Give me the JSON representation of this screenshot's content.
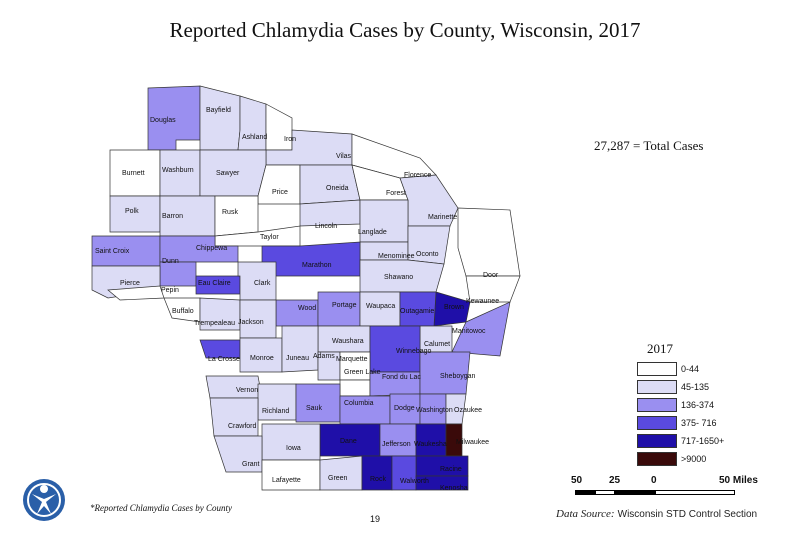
{
  "title": "Reported Chlamydia Cases by County, Wisconsin, 2017",
  "total_cases": "27,287 = Total Cases",
  "legend": {
    "title": "2017",
    "items": [
      {
        "label": "0-44",
        "color": "#ffffff"
      },
      {
        "label": "45-135",
        "color": "#dcdcf5"
      },
      {
        "label": "136-374",
        "color": "#9a8ff0"
      },
      {
        "label": "375- 716",
        "color": "#5a4ae0"
      },
      {
        "label": "717-1650+",
        "color": "#1f0fa8"
      },
      {
        "label": ">9000",
        "color": "#3a0a0a"
      }
    ]
  },
  "scale_bar": {
    "ticks": [
      "50",
      "25",
      "0",
      "50 Miles"
    ]
  },
  "footnote": "*Reported Chlamydia Cases by County",
  "page_number": "19",
  "data_source_label": "Data Source:",
  "data_source_value": "Wisconsin STD Control Section",
  "logo_icon": "person-figure-icon",
  "counties": [
    {
      "name": "Douglas",
      "cat": 2
    },
    {
      "name": "Bayfield",
      "cat": 1
    },
    {
      "name": "Ashland",
      "cat": 1
    },
    {
      "name": "Iron",
      "cat": 0
    },
    {
      "name": "Vilas",
      "cat": 1
    },
    {
      "name": "Burnett",
      "cat": 0
    },
    {
      "name": "Washburn",
      "cat": 1
    },
    {
      "name": "Sawyer",
      "cat": 1
    },
    {
      "name": "Florence",
      "cat": 0
    },
    {
      "name": "Price",
      "cat": 0
    },
    {
      "name": "Oneida",
      "cat": 1
    },
    {
      "name": "Forest",
      "cat": 0
    },
    {
      "name": "Polk",
      "cat": 1
    },
    {
      "name": "Barron",
      "cat": 1
    },
    {
      "name": "Rusk",
      "cat": 0
    },
    {
      "name": "Marinette",
      "cat": 1
    },
    {
      "name": "Lincoln",
      "cat": 1
    },
    {
      "name": "Taylor",
      "cat": 0
    },
    {
      "name": "Langlade",
      "cat": 1
    },
    {
      "name": "Saint Croix",
      "cat": 2
    },
    {
      "name": "Chippewa",
      "cat": 2
    },
    {
      "name": "Menominee",
      "cat": 1
    },
    {
      "name": "Oconto",
      "cat": 1
    },
    {
      "name": "Dunn",
      "cat": 2
    },
    {
      "name": "Marathon",
      "cat": 3
    },
    {
      "name": "Door",
      "cat": 0
    },
    {
      "name": "Pierce",
      "cat": 1
    },
    {
      "name": "Eau Claire",
      "cat": 3
    },
    {
      "name": "Clark",
      "cat": 1
    },
    {
      "name": "Shawano",
      "cat": 1
    },
    {
      "name": "Pepin",
      "cat": 0
    },
    {
      "name": "Kewaunee",
      "cat": 0
    },
    {
      "name": "Wood",
      "cat": 2
    },
    {
      "name": "Portage",
      "cat": 2
    },
    {
      "name": "Waupaca",
      "cat": 1
    },
    {
      "name": "Brown",
      "cat": 4
    },
    {
      "name": "Outagamie",
      "cat": 3
    },
    {
      "name": "Buffalo",
      "cat": 0
    },
    {
      "name": "Trempealeau",
      "cat": 1
    },
    {
      "name": "Jackson",
      "cat": 1
    },
    {
      "name": "Manitowoc",
      "cat": 2
    },
    {
      "name": "Waushara",
      "cat": 1
    },
    {
      "name": "Calumet",
      "cat": 1
    },
    {
      "name": "Winnebago",
      "cat": 3
    },
    {
      "name": "La Crosse",
      "cat": 3
    },
    {
      "name": "Monroe",
      "cat": 1
    },
    {
      "name": "Juneau",
      "cat": 1
    },
    {
      "name": "Adams",
      "cat": 1
    },
    {
      "name": "Marquette",
      "cat": 0
    },
    {
      "name": "Green Lake",
      "cat": 0
    },
    {
      "name": "Fond du Lac",
      "cat": 2
    },
    {
      "name": "Sheboygan",
      "cat": 2
    },
    {
      "name": "Vernon",
      "cat": 1
    },
    {
      "name": "Richland",
      "cat": 1
    },
    {
      "name": "Sauk",
      "cat": 2
    },
    {
      "name": "Columbia",
      "cat": 2
    },
    {
      "name": "Dodge",
      "cat": 2
    },
    {
      "name": "Washington",
      "cat": 2
    },
    {
      "name": "Ozaukee",
      "cat": 1
    },
    {
      "name": "Crawford",
      "cat": 1
    },
    {
      "name": "Dane",
      "cat": 4
    },
    {
      "name": "Jefferson",
      "cat": 2
    },
    {
      "name": "Waukesha",
      "cat": 4
    },
    {
      "name": "Milwaukee",
      "cat": 5
    },
    {
      "name": "Iowa",
      "cat": 1
    },
    {
      "name": "Grant",
      "cat": 1
    },
    {
      "name": "Racine",
      "cat": 4
    },
    {
      "name": "Lafayette",
      "cat": 0
    },
    {
      "name": "Green",
      "cat": 1
    },
    {
      "name": "Rock",
      "cat": 4
    },
    {
      "name": "Walworth",
      "cat": 3
    },
    {
      "name": "Kenosha",
      "cat": 4
    }
  ]
}
